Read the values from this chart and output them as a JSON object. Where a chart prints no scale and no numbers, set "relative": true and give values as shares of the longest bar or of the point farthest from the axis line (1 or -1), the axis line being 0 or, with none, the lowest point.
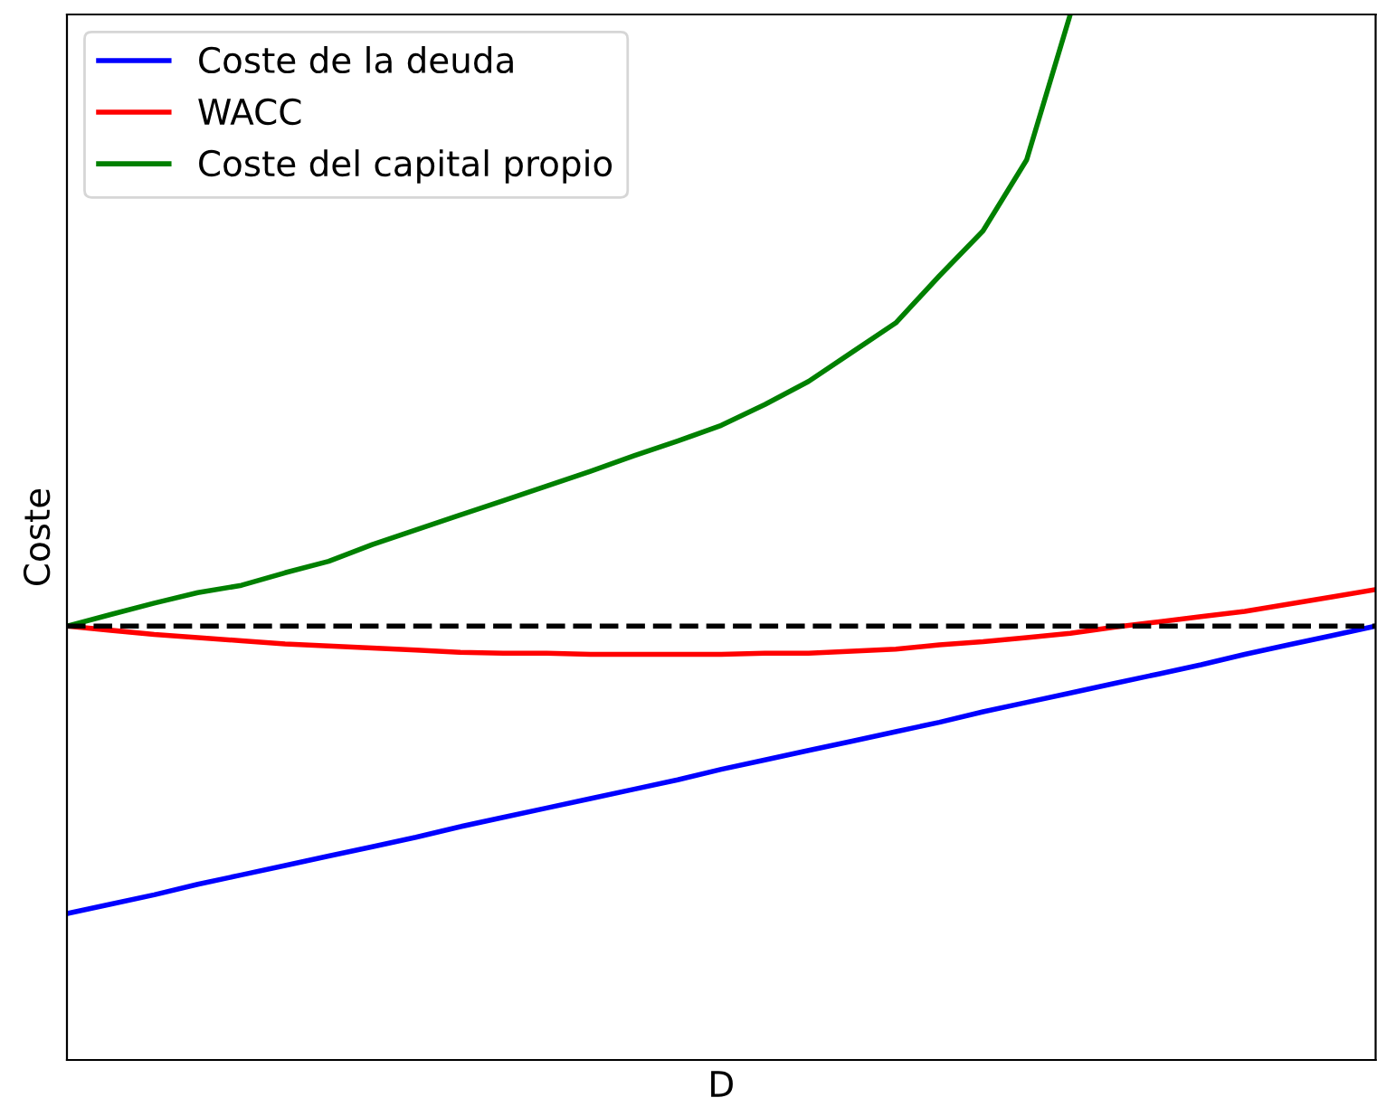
{
  "chart_data": {
    "type": "line",
    "xlabel": "D",
    "ylabel": "Coste",
    "relative": true,
    "tick_labels": false,
    "legend": "top left",
    "line_style": "solid",
    "categories": [
      null,
      null,
      null,
      null,
      null,
      null,
      null,
      null,
      null,
      null,
      null,
      null,
      null,
      null,
      null,
      null,
      null,
      null,
      null,
      null,
      null,
      null,
      null,
      null,
      null,
      null,
      null,
      null,
      null,
      null,
      null
    ],
    "series": [
      {
        "name": "Coste de la deuda",
        "color": "#0000ff",
        "values": [
          0.14,
          0.149,
          0.158,
          0.168,
          0.177,
          0.186,
          0.195,
          0.204,
          0.213,
          0.223,
          0.232,
          0.241,
          0.25,
          0.259,
          0.268,
          0.278,
          0.287,
          0.296,
          0.305,
          0.314,
          0.323,
          0.333,
          0.342,
          0.351,
          0.36,
          0.369,
          0.378,
          0.388,
          0.397,
          0.406,
          0.415
        ]
      },
      {
        "name": "WACC",
        "color": "#ff0000",
        "values": [
          0.415,
          0.411,
          0.407,
          0.404,
          0.401,
          0.398,
          0.396,
          0.394,
          0.392,
          0.39,
          0.389,
          0.389,
          0.388,
          0.388,
          0.388,
          0.388,
          0.389,
          0.389,
          0.391,
          0.393,
          0.397,
          0.4,
          0.404,
          0.408,
          0.414,
          0.419,
          0.424,
          0.429,
          0.436,
          0.443,
          0.45
        ]
      },
      {
        "name": "Coste del capital propio",
        "color": "#008000",
        "values": [
          0.415,
          0.426,
          0.437,
          0.447,
          0.454,
          0.466,
          0.477,
          0.493,
          0.507,
          0.521,
          0.535,
          0.549,
          0.563,
          0.578,
          0.592,
          0.607,
          0.627,
          0.649,
          0.677,
          0.705,
          0.75,
          0.793,
          0.861,
          1.0,
          null,
          null,
          null,
          null,
          null,
          null,
          null
        ]
      }
    ],
    "ref_lines": [
      {
        "axis": "y",
        "value": 0.415,
        "color": "#000000",
        "line_style": "dashed"
      }
    ]
  }
}
